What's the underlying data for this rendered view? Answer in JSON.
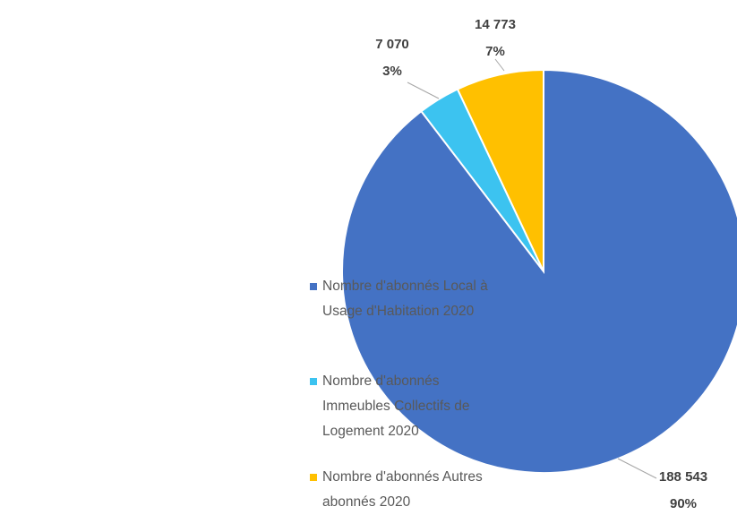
{
  "chart_data": {
    "type": "pie",
    "categories": [
      "Nombre d'abonnés Local à Usage d'Habitation 2020",
      "Nombre d'abonnés Immeubles Collectifs de Logement 2020",
      "Nombre d'abonnés Autres abonnés 2020"
    ],
    "values": [
      188543,
      7070,
      14773
    ],
    "value_labels": [
      "188 543",
      "7 070",
      "14 773"
    ],
    "percents": [
      90,
      3,
      7
    ],
    "percent_labels": [
      "90%",
      "3%",
      "7%"
    ],
    "colors": [
      "#4472c4",
      "#3cc3f0",
      "#ffc000"
    ],
    "legend": "left"
  }
}
